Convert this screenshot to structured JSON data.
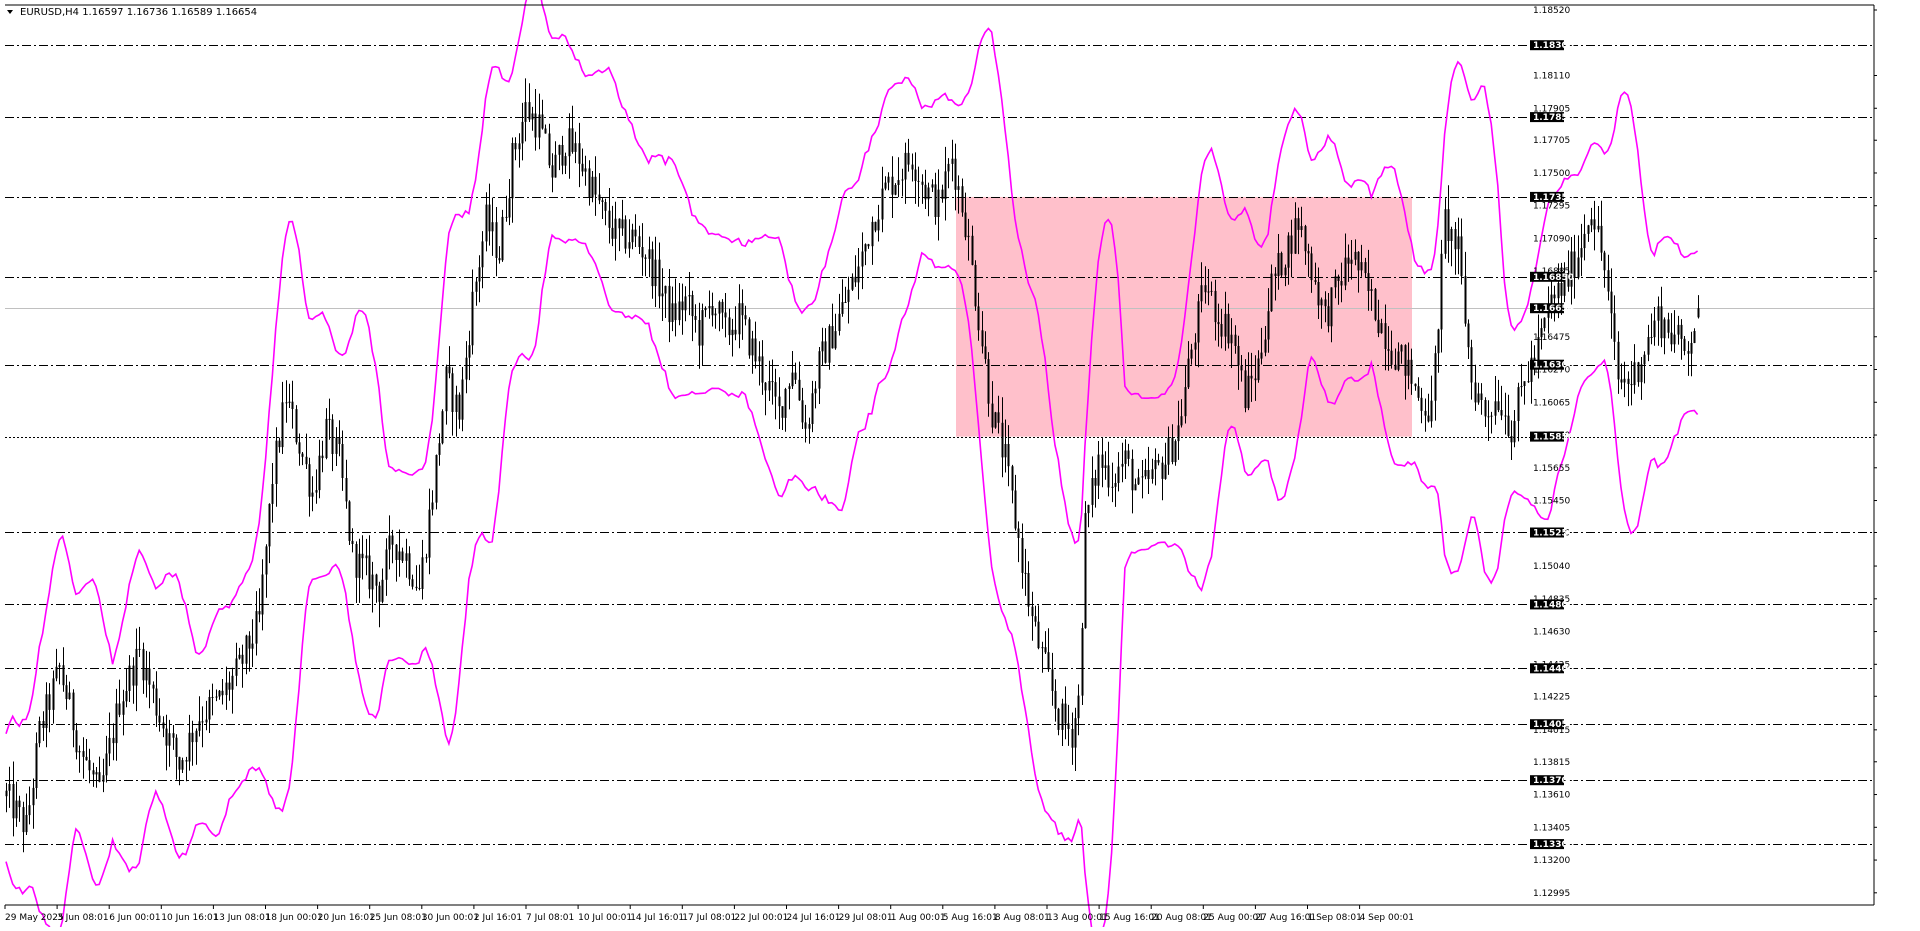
{
  "window": {
    "title": "EURUSD,H4  1.16597 1.16736 1.16589 1.16654"
  },
  "colors": {
    "background": "#ffffff",
    "candle": "#000000",
    "band": "#ff00ff",
    "rect": "#ffc0cb",
    "level_line": "#000000",
    "label_bg": "#000000",
    "label_text": "#ffffff"
  },
  "chart_data": {
    "type": "candlestick",
    "symbol": "EURUSD",
    "timeframe": "H4",
    "last_ohlc": {
      "open": 1.16597,
      "high": 1.16736,
      "low": 1.16589,
      "close": 1.16654
    },
    "ylim": [
      1.1295,
      1.1852
    ],
    "y_ticks": [
      "1.18520",
      "1.18110",
      "1.17905",
      "1.17705",
      "1.17500",
      "1.17295",
      "1.17090",
      "1.16885",
      "1.16475",
      "1.16270",
      "1.16065",
      "1.15860",
      "1.15655",
      "1.15450",
      "1.15250",
      "1.15040",
      "1.14835",
      "1.14630",
      "1.14425",
      "1.14225",
      "1.14015",
      "1.13815",
      "1.13610",
      "1.13405",
      "1.13200",
      "1.12995"
    ],
    "x_ticks": [
      "29 May 2025",
      "3 Jun 08:01",
      "6 Jun 00:01",
      "10 Jun 16:01",
      "13 Jun 08:01",
      "18 Jun 00:01",
      "20 Jun 16:01",
      "25 Jun 08:01",
      "30 Jun 00:01",
      "2 Jul 16:01",
      "7 Jul 08:01",
      "10 Jul 00:01",
      "14 Jul 16:01",
      "17 Jul 08:01",
      "22 Jul 00:01",
      "24 Jul 16:01",
      "29 Jul 08:01",
      "1 Aug 00:01",
      "5 Aug 16:01",
      "8 Aug 08:01",
      "13 Aug 00:01",
      "15 Aug 16:01",
      "20 Aug 08:01",
      "25 Aug 00:01",
      "27 Aug 16:01",
      "1 Sep 08:01",
      "4 Sep 00:01"
    ],
    "horizontal_levels": [
      "1.18300",
      "1.17850",
      "1.17350",
      "1.16850",
      "1.16300",
      "1.15850",
      "1.15250",
      "1.14800",
      "1.14400",
      "1.14050",
      "1.13700",
      "1.13300"
    ],
    "current_price": "1.16654",
    "range_box": {
      "from": "5 Aug",
      "to": "5 Sep",
      "top": 1.1735,
      "bottom": 1.1585
    },
    "price_path": [
      [
        0,
        1.136
      ],
      [
        6,
        1.134
      ],
      [
        10,
        1.14
      ],
      [
        16,
        1.144
      ],
      [
        22,
        1.139
      ],
      [
        28,
        1.136
      ],
      [
        34,
        1.142
      ],
      [
        40,
        1.145
      ],
      [
        46,
        1.141
      ],
      [
        52,
        1.138
      ],
      [
        58,
        1.141
      ],
      [
        64,
        1.142
      ],
      [
        70,
        1.144
      ],
      [
        76,
        1.147
      ],
      [
        80,
        1.156
      ],
      [
        84,
        1.161
      ],
      [
        88,
        1.158
      ],
      [
        92,
        1.155
      ],
      [
        96,
        1.159
      ],
      [
        100,
        1.157
      ],
      [
        104,
        1.151
      ],
      [
        108,
        1.15
      ],
      [
        112,
        1.149
      ],
      [
        116,
        1.152
      ],
      [
        120,
        1.151
      ],
      [
        124,
        1.149
      ],
      [
        128,
        1.155
      ],
      [
        132,
        1.162
      ],
      [
        136,
        1.16
      ],
      [
        140,
        1.167
      ],
      [
        144,
        1.172
      ],
      [
        148,
        1.17
      ],
      [
        152,
        1.176
      ],
      [
        156,
        1.179
      ],
      [
        160,
        1.178
      ],
      [
        164,
        1.175
      ],
      [
        168,
        1.177
      ],
      [
        172,
        1.176
      ],
      [
        176,
        1.174
      ],
      [
        180,
        1.172
      ],
      [
        184,
        1.171
      ],
      [
        188,
        1.171
      ],
      [
        192,
        1.17
      ],
      [
        196,
        1.168
      ],
      [
        200,
        1.166
      ],
      [
        204,
        1.167
      ],
      [
        208,
        1.165
      ],
      [
        212,
        1.167
      ],
      [
        216,
        1.165
      ],
      [
        220,
        1.166
      ],
      [
        224,
        1.164
      ],
      [
        228,
        1.162
      ],
      [
        232,
        1.16
      ],
      [
        236,
        1.163
      ],
      [
        240,
        1.159
      ],
      [
        244,
        1.163
      ],
      [
        248,
        1.165
      ],
      [
        252,
        1.167
      ],
      [
        256,
        1.169
      ],
      [
        260,
        1.172
      ],
      [
        264,
        1.174
      ],
      [
        268,
        1.175
      ],
      [
        272,
        1.176
      ],
      [
        276,
        1.174
      ],
      [
        280,
        1.173
      ],
      [
        284,
        1.176
      ],
      [
        288,
        1.172
      ],
      [
        292,
        1.166
      ],
      [
        296,
        1.16
      ],
      [
        300,
        1.157
      ],
      [
        304,
        1.152
      ],
      [
        308,
        1.147
      ],
      [
        312,
        1.144
      ],
      [
        316,
        1.141
      ],
      [
        320,
        1.14
      ],
      [
        322,
        1.142
      ],
      [
        324,
        1.153
      ],
      [
        328,
        1.157
      ],
      [
        332,
        1.156
      ],
      [
        336,
        1.157
      ],
      [
        340,
        1.155
      ],
      [
        344,
        1.156
      ],
      [
        348,
        1.157
      ],
      [
        352,
        1.159
      ],
      [
        356,
        1.164
      ],
      [
        360,
        1.168
      ],
      [
        364,
        1.166
      ],
      [
        368,
        1.165
      ],
      [
        372,
        1.161
      ],
      [
        376,
        1.163
      ],
      [
        380,
        1.168
      ],
      [
        384,
        1.17
      ],
      [
        388,
        1.172
      ],
      [
        392,
        1.169
      ],
      [
        396,
        1.166
      ],
      [
        400,
        1.168
      ],
      [
        404,
        1.17
      ],
      [
        408,
        1.168
      ],
      [
        412,
        1.166
      ],
      [
        416,
        1.164
      ],
      [
        420,
        1.163
      ],
      [
        424,
        1.161
      ],
      [
        428,
        1.16
      ],
      [
        432,
        1.172
      ],
      [
        436,
        1.17
      ],
      [
        440,
        1.162
      ],
      [
        444,
        1.16
      ],
      [
        448,
        1.161
      ],
      [
        452,
        1.159
      ],
      [
        456,
        1.162
      ],
      [
        460,
        1.164
      ],
      [
        464,
        1.167
      ],
      [
        468,
        1.168
      ],
      [
        472,
        1.17
      ],
      [
        476,
        1.173
      ],
      [
        480,
        1.169
      ],
      [
        484,
        1.162
      ],
      [
        488,
        1.162
      ],
      [
        492,
        1.164
      ],
      [
        496,
        1.166
      ],
      [
        500,
        1.165
      ],
      [
        504,
        1.164
      ],
      [
        508,
        1.166
      ]
    ]
  }
}
